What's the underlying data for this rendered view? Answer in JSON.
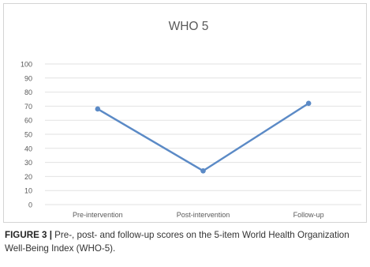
{
  "chart_data": {
    "type": "line",
    "title": "WHO 5",
    "xlabel": "",
    "ylabel": "",
    "categories": [
      "Pre-intervention",
      "Post-intervention",
      "Follow-up"
    ],
    "series": [
      {
        "values": [
          68,
          24,
          72
        ]
      }
    ],
    "ylim": [
      0,
      100
    ],
    "yticks": [
      0,
      10,
      20,
      30,
      40,
      50,
      60,
      70,
      80,
      90,
      100
    ],
    "grid": true,
    "legend": "none",
    "line_color": "#5b8ac6",
    "grid_color": "#e2e2e2"
  },
  "caption": {
    "label": "FIGURE 3 |",
    "text": " Pre-, post- and follow-up scores on the 5-item World Health Organization Well-Being Index (WHO-5)."
  }
}
